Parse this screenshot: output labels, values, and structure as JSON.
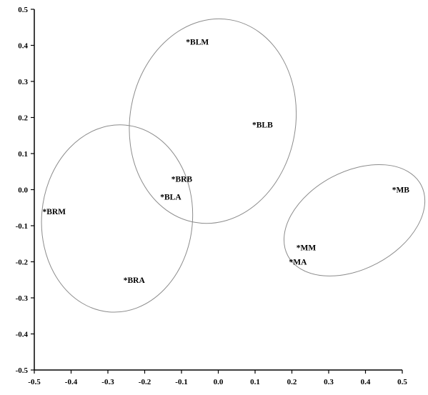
{
  "chart_data": {
    "type": "scatter",
    "title": "",
    "xlabel": "",
    "ylabel": "",
    "xlim": [
      -0.5,
      0.5
    ],
    "ylim": [
      -0.5,
      0.5
    ],
    "x_ticks": [
      -0.5,
      -0.4,
      -0.3,
      -0.2,
      -0.1,
      0.0,
      0.1,
      0.2,
      0.3,
      0.4,
      0.5
    ],
    "y_ticks": [
      0.5,
      0.4,
      0.3,
      0.2,
      0.1,
      0.0,
      -0.1,
      -0.2,
      -0.3,
      -0.4,
      -0.5
    ],
    "x_tick_labels": [
      "-0.5",
      "-0.4",
      "-0.3",
      "-0.2",
      "-0.1",
      "0.0",
      "0.1",
      "0.2",
      "0.3",
      "0.4",
      "0.5"
    ],
    "y_tick_labels": [
      "0.5",
      "0.4",
      "0.3",
      "0.2",
      "0.1",
      "0.0",
      "-0.1",
      "-0.2",
      "-0.3",
      "-0.4",
      "-0.5"
    ],
    "grid": false,
    "legend": "none",
    "points": [
      {
        "label": "*BLM",
        "x": -0.08,
        "y": 0.41
      },
      {
        "label": "*BLB",
        "x": 0.1,
        "y": 0.18
      },
      {
        "label": "*BRB",
        "x": -0.12,
        "y": 0.03
      },
      {
        "label": "*BLA",
        "x": -0.15,
        "y": -0.02
      },
      {
        "label": "*BRM",
        "x": -0.47,
        "y": -0.06
      },
      {
        "label": "*BRA",
        "x": -0.25,
        "y": -0.25
      },
      {
        "label": "*MB",
        "x": 0.48,
        "y": 0.0
      },
      {
        "label": "*MM",
        "x": 0.22,
        "y": -0.16
      },
      {
        "label": "*MA",
        "x": 0.2,
        "y": -0.2
      }
    ],
    "groups": [
      {
        "cx": -0.015,
        "cy": 0.19,
        "rx": 0.225,
        "ry": 0.285,
        "rotation": 10
      },
      {
        "cx": -0.275,
        "cy": -0.08,
        "rx": 0.205,
        "ry": 0.26,
        "rotation": 5
      },
      {
        "cx": 0.37,
        "cy": -0.085,
        "rx": 0.205,
        "ry": 0.135,
        "rotation": -28
      }
    ]
  }
}
